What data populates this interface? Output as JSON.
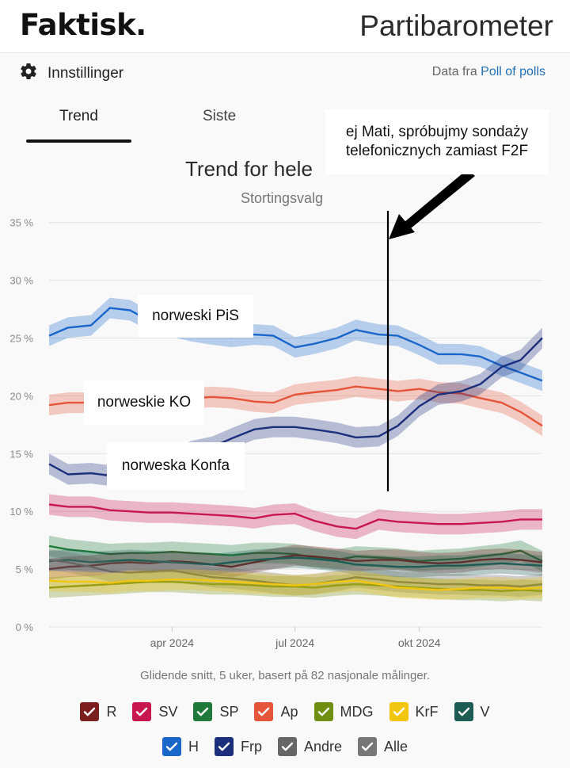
{
  "header": {
    "logo": "Faktisk.",
    "title": "Partibarometer"
  },
  "settings": {
    "label": "Innstillinger"
  },
  "source": {
    "prefix": "Data fra",
    "link": "Poll of polls"
  },
  "tabs": [
    {
      "label": "Trend"
    },
    {
      "label": "Siste"
    }
  ],
  "chart_title": "Trend for hele",
  "chart_subtitle": "Stortingsvalg",
  "note": "Glidende snitt, 5 uker, basert på 82 nasjonale målinger.",
  "annotations": {
    "top_right": [
      "ej Mati, spróbujmy sondaży",
      "telefonicznych zamiast F2F"
    ],
    "pis": "norweski PiS",
    "ko": "norweskie KO",
    "konfa": "norweska Konfa"
  },
  "legend": [
    {
      "label": "R",
      "color": "#7b1e1e"
    },
    {
      "label": "SV",
      "color": "#c8174f"
    },
    {
      "label": "SP",
      "color": "#1f7a3a"
    },
    {
      "label": "Ap",
      "color": "#e4553a"
    },
    {
      "label": "MDG",
      "color": "#6f8f12"
    },
    {
      "label": "KrF",
      "color": "#f2c511"
    },
    {
      "label": "V",
      "color": "#1d5c55"
    },
    {
      "label": "H",
      "color": "#1a67c9"
    },
    {
      "label": "Frp",
      "color": "#1b2f7d"
    },
    {
      "label": "Andre",
      "color": "#666666"
    },
    {
      "label": "Alle",
      "color": "#777777"
    }
  ],
  "chart_data": {
    "type": "line",
    "x": [
      "2024-01-01",
      "2024-01-15",
      "2024-02-01",
      "2024-02-15",
      "2024-03-01",
      "2024-03-15",
      "2024-04-01",
      "2024-04-15",
      "2024-05-01",
      "2024-05-15",
      "2024-06-01",
      "2024-06-15",
      "2024-07-01",
      "2024-07-15",
      "2024-08-01",
      "2024-08-15",
      "2024-09-01",
      "2024-09-15",
      "2024-10-01",
      "2024-10-15",
      "2024-11-01",
      "2024-11-15",
      "2024-12-01",
      "2024-12-15",
      "2024-12-31"
    ],
    "xticks": [
      "apr 2024",
      "jul 2024",
      "okt 2024"
    ],
    "yticks": [
      "0 %",
      "5 %",
      "10 %",
      "15 %",
      "20 %",
      "25 %",
      "30 %",
      "35 %"
    ],
    "ylim": [
      0,
      35
    ],
    "series": [
      {
        "name": "H",
        "color": "#1a67c9",
        "values": [
          25.2,
          25.9,
          26.1,
          27.6,
          27.4,
          26.5,
          26.0,
          25.6,
          25.3,
          25.1,
          25.3,
          25.2,
          24.2,
          24.5,
          25.0,
          25.7,
          25.3,
          25.2,
          24.4,
          23.6,
          23.6,
          23.4,
          22.6,
          22.0,
          21.3
        ]
      },
      {
        "name": "Ap",
        "color": "#e4553a",
        "values": [
          19.2,
          19.4,
          19.4,
          19.3,
          19.6,
          19.5,
          19.7,
          19.8,
          19.9,
          19.8,
          19.5,
          19.4,
          20.1,
          20.3,
          20.5,
          20.8,
          20.6,
          20.4,
          20.6,
          20.3,
          20.2,
          19.8,
          19.4,
          18.6,
          17.4
        ]
      },
      {
        "name": "Frp",
        "color": "#1b2f7d",
        "values": [
          14.1,
          13.2,
          13.3,
          13.1,
          13.8,
          14.2,
          14.5,
          15.2,
          15.6,
          16.3,
          17.1,
          17.3,
          17.3,
          17.1,
          16.8,
          16.4,
          16.5,
          17.4,
          19.1,
          20.1,
          20.4,
          21.0,
          22.5,
          23.1,
          25.0
        ]
      },
      {
        "name": "SV",
        "color": "#c8174f",
        "values": [
          10.6,
          10.4,
          10.4,
          10.1,
          10.0,
          9.9,
          9.9,
          9.8,
          9.7,
          9.6,
          9.4,
          9.7,
          9.8,
          9.2,
          8.7,
          8.5,
          9.3,
          9.1,
          9.0,
          8.9,
          8.9,
          9.0,
          9.1,
          9.3,
          9.3
        ]
      },
      {
        "name": "SP",
        "color": "#1f7a3a",
        "values": [
          7.0,
          6.7,
          6.5,
          6.3,
          6.4,
          6.4,
          6.5,
          6.4,
          6.3,
          6.2,
          6.4,
          6.4,
          6.3,
          6.0,
          5.8,
          6.1,
          6.0,
          5.9,
          5.7,
          5.8,
          5.9,
          6.1,
          6.3,
          6.6,
          5.7
        ]
      },
      {
        "name": "R",
        "color": "#7b1e1e",
        "values": [
          5.0,
          5.2,
          5.3,
          5.5,
          5.6,
          5.5,
          5.7,
          5.6,
          5.4,
          5.2,
          5.6,
          5.9,
          6.2,
          6.1,
          5.9,
          5.7,
          5.8,
          5.8,
          5.6,
          5.5,
          5.6,
          5.8,
          5.9,
          5.8,
          5.6
        ]
      },
      {
        "name": "V",
        "color": "#1d5c55",
        "values": [
          5.7,
          5.8,
          5.6,
          5.7,
          5.8,
          5.7,
          5.6,
          5.5,
          5.4,
          5.6,
          5.8,
          5.9,
          6.0,
          5.9,
          5.7,
          5.4,
          5.3,
          5.2,
          5.2,
          5.3,
          5.3,
          5.4,
          5.5,
          5.4,
          5.3
        ]
      },
      {
        "name": "Andre",
        "color": "#666666",
        "values": [
          5.8,
          5.6,
          5.2,
          4.8,
          4.7,
          4.8,
          4.9,
          4.6,
          4.3,
          4.2,
          4.0,
          3.8,
          3.6,
          3.7,
          4.0,
          4.3,
          4.1,
          3.9,
          3.8,
          3.7,
          3.7,
          3.6,
          3.6,
          3.5,
          3.7
        ]
      },
      {
        "name": "MDG",
        "color": "#6f8f12",
        "values": [
          3.4,
          3.5,
          3.6,
          3.7,
          3.8,
          3.9,
          3.9,
          3.8,
          3.7,
          3.7,
          3.6,
          3.5,
          3.5,
          3.4,
          3.6,
          3.7,
          3.6,
          3.5,
          3.4,
          3.3,
          3.2,
          3.2,
          3.1,
          3.2,
          3.1
        ]
      },
      {
        "name": "KrF",
        "color": "#f2c511",
        "values": [
          4.0,
          3.9,
          3.9,
          3.8,
          4.0,
          4.0,
          4.1,
          4.1,
          4.0,
          3.9,
          3.8,
          3.7,
          3.6,
          3.7,
          3.9,
          4.0,
          3.7,
          3.4,
          3.3,
          3.2,
          3.3,
          3.4,
          3.4,
          3.3,
          3.4
        ]
      }
    ]
  }
}
